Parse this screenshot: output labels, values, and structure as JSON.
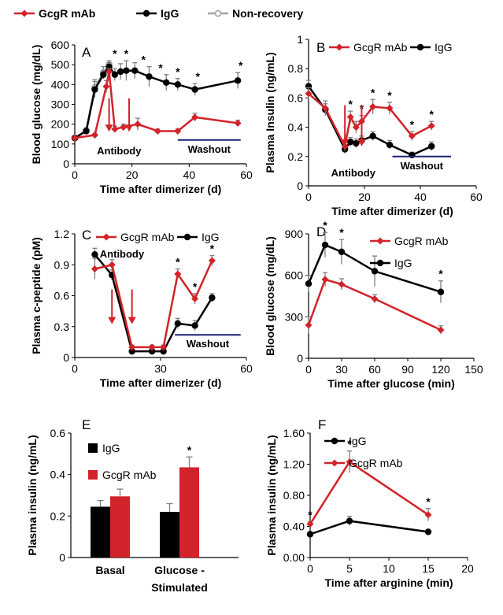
{
  "colors": {
    "red": "#d2232a",
    "black": "#000000",
    "gray": "#a6a6a6",
    "navy": "#1f1f7a",
    "errbar": "#808080"
  },
  "top_legend": [
    {
      "label": "GcgR mAb",
      "color": "#d2232a",
      "marker": "diamond"
    },
    {
      "label": "IgG",
      "color": "#000000",
      "marker": "circle"
    },
    {
      "label": "Non-recovery",
      "color": "#a6a6a6",
      "marker": "open-circle"
    }
  ],
  "chart_data": [
    {
      "panel": "A",
      "type": "line",
      "ylabel": "Blood glucose (mg/dL)",
      "xlabel": "Time after dimerizer (d)",
      "xlim": [
        0,
        60
      ],
      "xticks": [
        0,
        20,
        40,
        60
      ],
      "ylim": [
        0,
        600
      ],
      "yticks": [
        0,
        100,
        200,
        300,
        400,
        500,
        600
      ],
      "series": [
        {
          "name": "GcgR mAb",
          "color": "#d2232a",
          "marker": "diamond",
          "x": [
            0,
            7,
            11,
            12,
            14,
            17,
            22,
            29,
            36,
            42,
            57
          ],
          "y": [
            130,
            145,
            390,
            465,
            175,
            185,
            200,
            165,
            165,
            235,
            205
          ],
          "err": [
            0,
            8,
            30,
            15,
            15,
            15,
            30,
            10,
            10,
            20,
            15
          ]
        },
        {
          "name": "IgG",
          "color": "#000000",
          "marker": "circle",
          "x": [
            0,
            4,
            7,
            10,
            12,
            14,
            16,
            18,
            21,
            26,
            32,
            36,
            42,
            57
          ],
          "y": [
            130,
            165,
            375,
            450,
            490,
            450,
            465,
            470,
            470,
            440,
            410,
            400,
            375,
            420
          ],
          "err": [
            0,
            10,
            40,
            20,
            20,
            30,
            40,
            50,
            40,
            50,
            40,
            30,
            30,
            40
          ]
        },
        {
          "name": "Non-recovery",
          "color": "#a6a6a6",
          "marker": "open-circle",
          "x": [
            0,
            4,
            7,
            10,
            12
          ],
          "y": [
            130,
            170,
            385,
            460,
            500
          ],
          "err": [
            0,
            10,
            40,
            30,
            20
          ]
        }
      ],
      "star_x": [
        14,
        18,
        24,
        30,
        36,
        43,
        58
      ],
      "arrows_x": [
        12,
        19
      ],
      "antibody_label": "Antibody",
      "star_label": "*",
      "washout": {
        "label": "Washout",
        "x": [
          36,
          58
        ]
      }
    },
    {
      "panel": "B",
      "type": "line",
      "ylabel": "Plasma Insulin (ng/mL)",
      "xlabel": "Time after dimerizer (d)",
      "xlim": [
        0,
        60
      ],
      "xticks": [
        0,
        20,
        40,
        60
      ],
      "ylim": [
        0,
        1
      ],
      "yticks": [
        0,
        0.2,
        0.4,
        0.6,
        0.8,
        1
      ],
      "legend": [
        "GcgR mAb",
        "IgG"
      ],
      "series": [
        {
          "name": "GcgR mAb",
          "color": "#d2232a",
          "marker": "diamond",
          "x": [
            0,
            6,
            13,
            15,
            17,
            19,
            23,
            29,
            37,
            44
          ],
          "y": [
            0.63,
            0.53,
            0.27,
            0.47,
            0.4,
            0.44,
            0.54,
            0.53,
            0.34,
            0.41
          ],
          "err": [
            0.04,
            0.05,
            0.03,
            0.04,
            0.04,
            0.04,
            0.05,
            0.04,
            0.03,
            0.03
          ]
        },
        {
          "name": "IgG",
          "color": "#000000",
          "marker": "circle",
          "x": [
            0,
            6,
            13,
            15,
            17,
            19,
            23,
            29,
            37,
            44
          ],
          "y": [
            0.68,
            0.52,
            0.25,
            0.3,
            0.29,
            0.31,
            0.34,
            0.28,
            0.21,
            0.27
          ],
          "err": [
            0.04,
            0.04,
            0.03,
            0.03,
            0.03,
            0.03,
            0.03,
            0.03,
            0.02,
            0.03
          ]
        }
      ],
      "star_x": [
        15,
        19,
        23,
        29,
        37,
        44
      ],
      "arrows_x": [
        13,
        19
      ],
      "antibody_label": "Antibody",
      "star_label": "*",
      "washout": {
        "label": "Washout",
        "x": [
          30,
          51
        ]
      }
    },
    {
      "panel": "C",
      "type": "line",
      "ylabel": "Plasma c-peptide (pM)",
      "xlabel": "Time after dimerizer (d)",
      "xlim": [
        0,
        60
      ],
      "xticks": [
        0,
        30,
        60
      ],
      "ylim": [
        0,
        1.2
      ],
      "yticks": [
        0,
        0.3,
        0.6,
        0.9,
        1.2
      ],
      "legend": [
        "GcgR mAb",
        "IgG"
      ],
      "series": [
        {
          "name": "GcgR mAb",
          "color": "#d2232a",
          "marker": "diamond",
          "x": [
            7,
            13,
            20,
            27,
            31,
            36,
            42,
            48
          ],
          "y": [
            0.86,
            0.9,
            0.1,
            0.1,
            0.1,
            0.81,
            0.57,
            0.94
          ],
          "err": [
            0.1,
            0.05,
            0.02,
            0.02,
            0.02,
            0.05,
            0.05,
            0.05
          ]
        },
        {
          "name": "IgG",
          "color": "#000000",
          "marker": "circle",
          "x": [
            7,
            13,
            20,
            27,
            31,
            36,
            42,
            48
          ],
          "y": [
            1.0,
            0.8,
            0.06,
            0.06,
            0.06,
            0.33,
            0.31,
            0.58
          ],
          "err": [
            0.06,
            0.05,
            0.02,
            0.02,
            0.02,
            0.05,
            0.05,
            0.04
          ]
        }
      ],
      "star_x": [
        36,
        42,
        48
      ],
      "arrows_x": [
        13,
        20
      ],
      "antibody_label": "Antibody",
      "star_label": "*",
      "washout": {
        "label": "Washout",
        "x": [
          35,
          58
        ]
      }
    },
    {
      "panel": "D",
      "type": "line",
      "ylabel": "Blood glucose  (mg/dL)",
      "xlabel": "Time after glucose (min)",
      "xlim": [
        0,
        150
      ],
      "xticks": [
        0,
        30,
        60,
        90,
        120,
        150
      ],
      "ylim": [
        0,
        900
      ],
      "yticks": [
        0,
        300,
        600,
        900
      ],
      "legend": [
        "GcgR mAb",
        "IgG"
      ],
      "series": [
        {
          "name": "GcgR mAb",
          "color": "#d2232a",
          "marker": "diamond",
          "x": [
            0,
            15,
            30,
            60,
            120
          ],
          "y": [
            240,
            570,
            535,
            430,
            205
          ],
          "err": [
            60,
            50,
            40,
            30,
            30
          ]
        },
        {
          "name": "IgG",
          "color": "#000000",
          "marker": "circle",
          "x": [
            0,
            15,
            30,
            60,
            120
          ],
          "y": [
            540,
            820,
            770,
            630,
            480
          ],
          "err": [
            60,
            90,
            90,
            110,
            80
          ]
        }
      ],
      "star_x": [
        15,
        30,
        120
      ],
      "star_label": "*"
    },
    {
      "panel": "E",
      "type": "bar",
      "ylabel": "Plasma insulin (ng/mL)",
      "ylim": [
        0,
        0.6
      ],
      "yticks": [
        0,
        0.2,
        0.4,
        0.6
      ],
      "categories": [
        [
          "Basal"
        ],
        [
          "Glucose -",
          "Stimulated"
        ]
      ],
      "series": [
        {
          "name": "IgG",
          "color": "#000000",
          "values": [
            0.245,
            0.22
          ],
          "err": [
            0.03,
            0.04
          ]
        },
        {
          "name": "GcgR mAb",
          "color": "#d2232a",
          "values": [
            0.295,
            0.435
          ],
          "err": [
            0.035,
            0.05
          ]
        }
      ],
      "star_label": "*"
    },
    {
      "panel": "F",
      "type": "line",
      "ylabel": "Plasma insulin (ng/mL)",
      "xlabel": "Time after arginine (min)",
      "xlim": [
        0,
        20
      ],
      "xticks": [
        0,
        5,
        10,
        15,
        20
      ],
      "ylim": [
        0,
        1.6
      ],
      "yticks": [
        0,
        0.4,
        0.8,
        1.2,
        1.6
      ],
      "ytick_labels": [
        "0.00",
        "0.40",
        "0.80",
        "1.20",
        "1.60"
      ],
      "legend": [
        "IgG",
        "GcgR mAb"
      ],
      "series": [
        {
          "name": "GcgR mAb",
          "color": "#d2232a",
          "marker": "diamond",
          "x": [
            0,
            5,
            15
          ],
          "y": [
            0.43,
            1.23,
            0.55
          ],
          "err": [
            0.03,
            0.14,
            0.08
          ]
        },
        {
          "name": "IgG",
          "color": "#000000",
          "marker": "circle",
          "x": [
            0,
            5,
            15
          ],
          "y": [
            0.3,
            0.47,
            0.33
          ],
          "err": [
            0.02,
            0.06,
            0.03
          ]
        }
      ],
      "star_x": [
        0,
        5,
        15
      ],
      "star_label": "*"
    }
  ]
}
